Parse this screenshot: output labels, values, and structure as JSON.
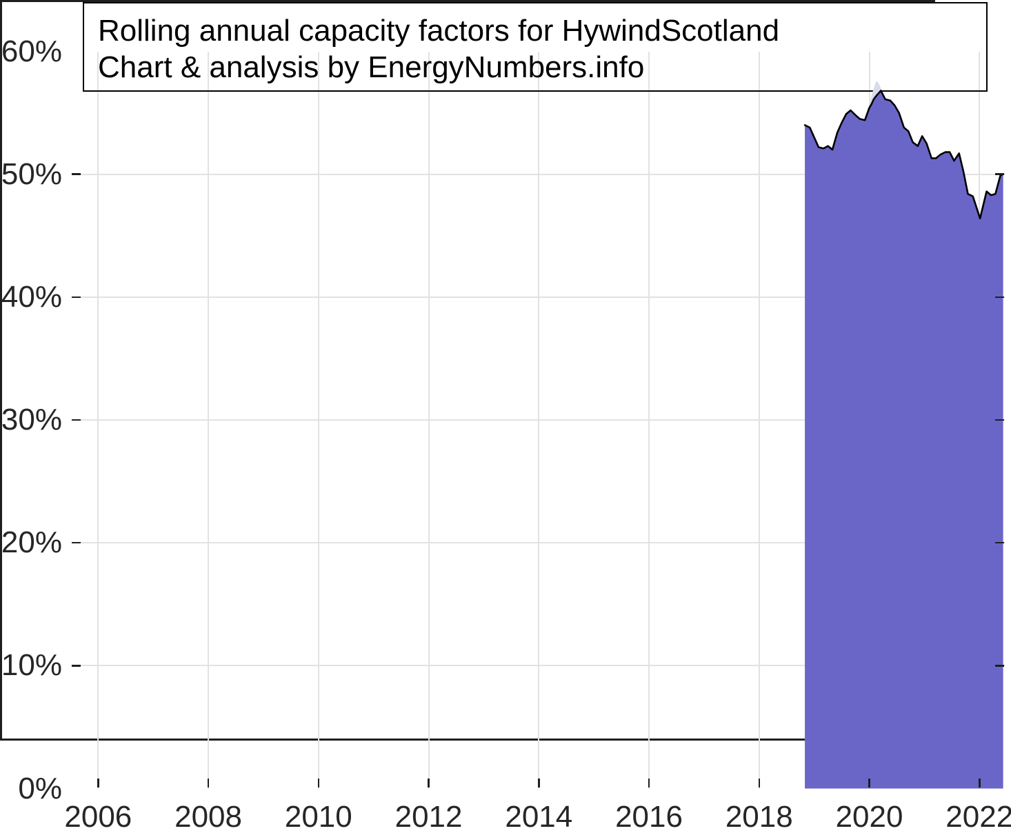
{
  "title_box": {
    "line1": "Rolling annual capacity factors for HywindScotland",
    "line2": "Chart & analysis by EnergyNumbers.info"
  },
  "colors": {
    "background": "#ffffff",
    "area_fill": "#6A66C8",
    "area_line": "#000000",
    "light_fill": "#D9DAEA",
    "gridline": "#E2E2E2",
    "axis": "#1f1f1f",
    "label": "#262626",
    "title_border": "#000000"
  },
  "chart_data": {
    "type": "area",
    "title": "Rolling annual capacity factors for HywindScotland",
    "subtitle": "Chart & analysis by EnergyNumbers.info",
    "xlabel": "",
    "ylabel": "",
    "grid": true,
    "legend": "none",
    "xlim": [
      2005.52,
      2022.46
    ],
    "ylim": [
      0,
      60
    ],
    "x_ticks": [
      2006,
      2008,
      2010,
      2012,
      2014,
      2016,
      2018,
      2020,
      2022
    ],
    "x_tick_labels": [
      "2006",
      "2008",
      "2010",
      "2012",
      "2014",
      "2016",
      "2018",
      "2020",
      "2022"
    ],
    "y_ticks": [
      0,
      10,
      20,
      30,
      40,
      50,
      60
    ],
    "y_tick_labels": [
      "0%",
      "10%",
      "20%",
      "30%",
      "40%",
      "50%",
      "60%"
    ],
    "unit": "percent",
    "series": [
      {
        "name": "shaded-alternate-estimate",
        "fill": "#D9DAEA",
        "stroke": "none",
        "points": [
          [
            2018.83,
            54.0
          ],
          [
            2018.92,
            53.8
          ],
          [
            2019.0,
            53.0
          ],
          [
            2019.08,
            52.2
          ],
          [
            2019.17,
            52.1
          ],
          [
            2019.25,
            52.3
          ],
          [
            2019.33,
            52.0
          ],
          [
            2019.42,
            53.4
          ],
          [
            2019.5,
            54.2
          ],
          [
            2019.58,
            54.9
          ],
          [
            2019.66,
            55.2
          ],
          [
            2019.75,
            54.8
          ],
          [
            2019.83,
            54.5
          ],
          [
            2019.92,
            54.4
          ],
          [
            2020.0,
            55.4
          ],
          [
            2020.04,
            56.4
          ],
          [
            2020.08,
            57.0
          ],
          [
            2020.13,
            57.6
          ],
          [
            2020.17,
            57.4
          ],
          [
            2020.21,
            57.0
          ],
          [
            2020.25,
            56.4
          ],
          [
            2020.29,
            56.1
          ],
          [
            2020.38,
            56.0
          ],
          [
            2020.46,
            55.6
          ],
          [
            2020.54,
            55.0
          ],
          [
            2020.63,
            53.8
          ],
          [
            2020.71,
            53.5
          ],
          [
            2020.79,
            52.6
          ],
          [
            2020.88,
            52.3
          ],
          [
            2020.96,
            53.1
          ],
          [
            2021.04,
            52.5
          ],
          [
            2021.13,
            51.3
          ],
          [
            2021.21,
            51.3
          ],
          [
            2021.29,
            51.6
          ],
          [
            2021.38,
            51.8
          ],
          [
            2021.46,
            51.8
          ],
          [
            2021.54,
            51.1
          ],
          [
            2021.63,
            51.7
          ],
          [
            2021.71,
            50.2
          ],
          [
            2021.79,
            48.4
          ],
          [
            2021.88,
            48.2
          ],
          [
            2021.96,
            47.1
          ],
          [
            2022.01,
            46.4
          ],
          [
            2022.13,
            48.6
          ],
          [
            2022.21,
            48.3
          ],
          [
            2022.29,
            48.4
          ],
          [
            2022.38,
            49.9
          ],
          [
            2022.43,
            50.0
          ]
        ]
      },
      {
        "name": "rolling-annual-capacity-factor",
        "fill": "#6A66C8",
        "stroke": "#000000",
        "stroke_width": 2.6,
        "points": [
          [
            2018.83,
            54.0
          ],
          [
            2018.92,
            53.8
          ],
          [
            2019.0,
            53.0
          ],
          [
            2019.08,
            52.2
          ],
          [
            2019.17,
            52.1
          ],
          [
            2019.25,
            52.3
          ],
          [
            2019.33,
            52.0
          ],
          [
            2019.42,
            53.4
          ],
          [
            2019.5,
            54.2
          ],
          [
            2019.58,
            54.9
          ],
          [
            2019.66,
            55.2
          ],
          [
            2019.75,
            54.8
          ],
          [
            2019.83,
            54.5
          ],
          [
            2019.92,
            54.4
          ],
          [
            2020.0,
            55.4
          ],
          [
            2020.04,
            55.7
          ],
          [
            2020.08,
            56.1
          ],
          [
            2020.13,
            56.4
          ],
          [
            2020.17,
            56.6
          ],
          [
            2020.21,
            56.8
          ],
          [
            2020.29,
            56.1
          ],
          [
            2020.38,
            56.0
          ],
          [
            2020.46,
            55.6
          ],
          [
            2020.54,
            55.0
          ],
          [
            2020.63,
            53.8
          ],
          [
            2020.71,
            53.5
          ],
          [
            2020.79,
            52.6
          ],
          [
            2020.88,
            52.3
          ],
          [
            2020.96,
            53.1
          ],
          [
            2021.04,
            52.5
          ],
          [
            2021.13,
            51.3
          ],
          [
            2021.21,
            51.3
          ],
          [
            2021.29,
            51.6
          ],
          [
            2021.38,
            51.8
          ],
          [
            2021.46,
            51.8
          ],
          [
            2021.54,
            51.1
          ],
          [
            2021.63,
            51.7
          ],
          [
            2021.71,
            50.2
          ],
          [
            2021.79,
            48.4
          ],
          [
            2021.88,
            48.2
          ],
          [
            2021.96,
            47.1
          ],
          [
            2022.01,
            46.4
          ],
          [
            2022.13,
            48.6
          ],
          [
            2022.21,
            48.3
          ],
          [
            2022.29,
            48.4
          ],
          [
            2022.38,
            49.9
          ],
          [
            2022.43,
            50.0
          ]
        ]
      }
    ]
  }
}
